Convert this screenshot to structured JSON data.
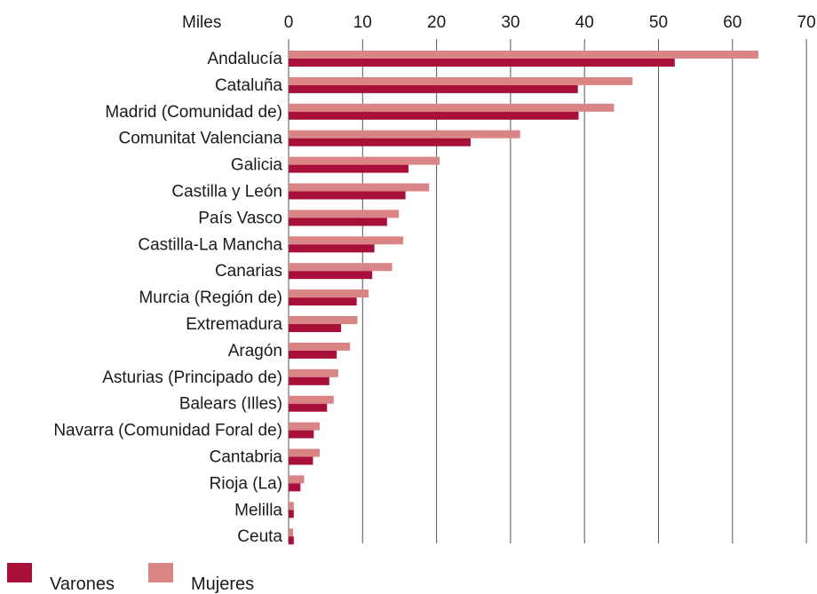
{
  "chart_data": {
    "type": "bar",
    "orientation": "horizontal",
    "unit_label": "Miles",
    "xlim": [
      0,
      70
    ],
    "xticks": [
      0,
      10,
      20,
      30,
      40,
      50,
      60,
      70
    ],
    "grid": true,
    "legend_position": "bottom-left",
    "categories": [
      "Andalucía",
      "Cataluña",
      "Madrid (Comunidad de)",
      "Comunitat Valenciana",
      "Galicia",
      "Castilla y León",
      "País Vasco",
      "Castilla-La Mancha",
      "Canarias",
      "Murcia (Región de)",
      "Extremadura",
      "Aragón",
      "Asturias (Principado de)",
      "Balears (Illes)",
      "Navarra (Comunidad Foral de)",
      "Cantabria",
      "Rioja (La)",
      "Melilla",
      "Ceuta"
    ],
    "series": [
      {
        "name": "Mujeres",
        "color": "#d98585",
        "values": [
          63.5,
          46.5,
          44.0,
          31.3,
          20.4,
          19.0,
          14.9,
          15.5,
          14.0,
          10.8,
          9.3,
          8.3,
          6.7,
          6.1,
          4.2,
          4.2,
          2.1,
          0.7,
          0.6
        ]
      },
      {
        "name": "Varones",
        "color": "#a8103a",
        "values": [
          52.2,
          39.1,
          39.2,
          24.6,
          16.2,
          15.8,
          13.3,
          11.6,
          11.3,
          9.2,
          7.1,
          6.5,
          5.5,
          5.2,
          3.4,
          3.3,
          1.6,
          0.7,
          0.7
        ]
      }
    ]
  },
  "legend": {
    "items": [
      {
        "label": "Varones",
        "color": "#a8103a"
      },
      {
        "label": "Mujeres",
        "color": "#d98585"
      }
    ]
  }
}
